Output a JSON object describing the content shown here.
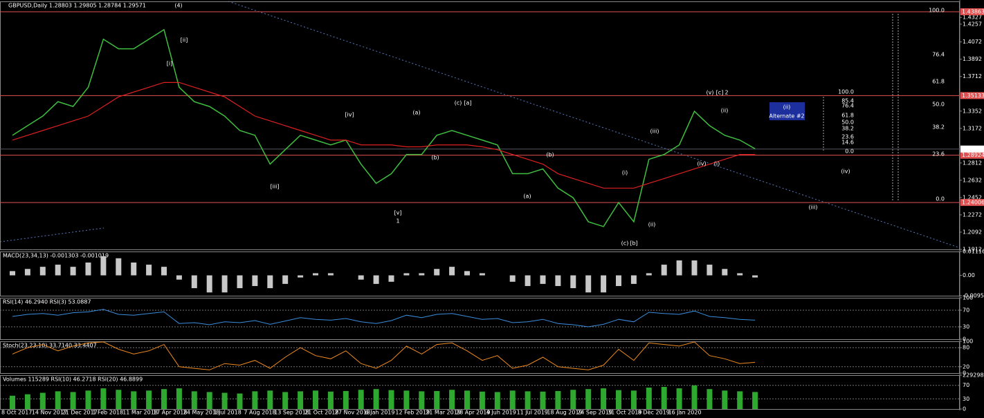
{
  "chart_data": [
    {
      "type": "line",
      "title": "GBPUSD,Daily  1.28803 1.29805 1.28784 1.29571",
      "categories": [
        "8 Oct 2017",
        null,
        "14 Nov 2017",
        null,
        "21 Dec 2017",
        null,
        "1 Feb 2018",
        null,
        "11 Mar 2018",
        null,
        "17 Apr 2018",
        null,
        "24 May 2018",
        null,
        "1 Jul 2018",
        null,
        "7 Aug 2018",
        null,
        "13 Sep 2018",
        null,
        "21 Oct 2018",
        null,
        "27 Nov 2018",
        null,
        "6 Jan 2019",
        null,
        "12 Feb 2019",
        null,
        "21 Mar 2019",
        null,
        "28 Apr 2019",
        null,
        "4 Jun 2019",
        null,
        "11 Jul 2019",
        null,
        "18 Aug 2019",
        null,
        "24 Sep 2019",
        null,
        "31 Oct 2019",
        null,
        "8 Dec 2019",
        null,
        "16 Jan 2020",
        null,
        null,
        null,
        null,
        null
      ],
      "series": [
        {
          "name": "Price",
          "color": "#3fbf3f",
          "values": [
            1.31,
            1.32,
            1.33,
            1.345,
            1.34,
            1.36,
            1.41,
            1.4,
            1.4,
            1.41,
            1.42,
            1.36,
            1.345,
            1.34,
            1.33,
            1.315,
            1.31,
            1.28,
            1.295,
            1.31,
            1.305,
            1.3,
            1.305,
            1.28,
            1.26,
            1.27,
            1.29,
            1.29,
            1.31,
            1.315,
            1.31,
            1.305,
            1.3,
            1.27,
            1.27,
            1.275,
            1.255,
            1.245,
            1.22,
            1.215,
            1.24,
            1.22,
            1.285,
            1.29,
            1.3,
            1.335,
            1.32,
            1.31,
            1.305,
            1.296
          ]
        },
        {
          "name": "MA",
          "color": "#e02020",
          "values": [
            1.305,
            1.31,
            1.315,
            1.32,
            1.325,
            1.33,
            1.34,
            1.35,
            1.355,
            1.36,
            1.365,
            1.365,
            1.36,
            1.355,
            1.35,
            1.34,
            1.33,
            1.325,
            1.32,
            1.315,
            1.31,
            1.305,
            1.305,
            1.3,
            1.3,
            1.3,
            1.298,
            1.298,
            1.3,
            1.3,
            1.3,
            1.298,
            1.295,
            1.29,
            1.285,
            1.28,
            1.27,
            1.265,
            1.26,
            1.255,
            1.255,
            1.255,
            1.26,
            1.265,
            1.27,
            1.275,
            1.28,
            1.285,
            1.29,
            1.29
          ]
        }
      ],
      "ylim": [
        1.1912,
        1.4494
      ],
      "yticks": [
        1.4327,
        1.4257,
        1.4072,
        1.3892,
        1.3712,
        1.3352,
        1.3172,
        1.2812,
        1.2632,
        1.2452,
        1.2272,
        1.2092,
        1.1912
      ],
      "levels": [
        1.43863,
        1.35133,
        1.28924,
        1.24006
      ],
      "level_color": "#e05050",
      "last_price": 1.29571,
      "wave_labels": [
        "(4)",
        "[i]",
        "[ii]",
        "[iii]",
        "[iv]",
        "[v]",
        "1",
        "(a)",
        "(b)",
        "(c)",
        "[a]",
        "(a)",
        "(b)",
        "(i)",
        "(ii)",
        "(iii)",
        "(iv)",
        "(i)",
        "(ii)",
        "(iii)",
        "(iv)",
        "(c)",
        "[b]",
        "(v)",
        "[c]",
        "2"
      ],
      "alternate_box": [
        "(ii)",
        "Alternate #2"
      ],
      "fib_a": [
        "100.0",
        "85.4",
        "76.4",
        "61.8",
        "50.0",
        "38.2",
        "23.6",
        "14.6",
        "0.0"
      ],
      "fib_b": [
        "100.0",
        "76.4",
        "61.8",
        "50.0",
        "38.2",
        "23.6",
        "0.0"
      ]
    },
    {
      "type": "bar",
      "title": "MACD(23,34,13) -0.001303 -0.001019",
      "color": "#c8c8c8",
      "values": [
        0.002,
        0.003,
        0.004,
        0.005,
        0.004,
        0.006,
        0.009,
        0.008,
        0.006,
        0.005,
        0.004,
        -0.002,
        -0.006,
        -0.008,
        -0.008,
        -0.006,
        -0.005,
        -0.006,
        -0.004,
        -0.001,
        0.001,
        0.001,
        0,
        -0.002,
        -0.004,
        -0.003,
        0.001,
        0.001,
        0.003,
        0.004,
        0.002,
        0.001,
        0,
        -0.003,
        -0.005,
        -0.004,
        -0.005,
        -0.006,
        -0.008,
        -0.008,
        -0.005,
        -0.004,
        0.001,
        0.005,
        0.007,
        0.007,
        0.005,
        0.003,
        0.001,
        -0.001
      ],
      "ylim": [
        -0.009532,
        0.011169
      ],
      "yticks": [
        0.011169,
        {
          "value": 0,
          "label": "0.00"
        },
        -0.009532
      ]
    },
    {
      "type": "line",
      "title": "RSI(14) 46.2940  RSI(3) 53.0887",
      "color": "#3a8fe0",
      "values": [
        55,
        60,
        62,
        58,
        64,
        66,
        72,
        60,
        58,
        62,
        66,
        38,
        40,
        35,
        42,
        40,
        45,
        36,
        44,
        52,
        48,
        46,
        50,
        42,
        38,
        45,
        58,
        52,
        60,
        62,
        55,
        48,
        50,
        40,
        42,
        48,
        38,
        35,
        30,
        36,
        48,
        42,
        65,
        62,
        60,
        68,
        55,
        52,
        48,
        46
      ],
      "ylim": [
        0,
        100
      ],
      "yticks": [
        100,
        70,
        30,
        0
      ]
    },
    {
      "type": "line",
      "title": "Stoch(23,23,10) 33.7140 33.4407",
      "color": "#f08c1e",
      "values": [
        60,
        80,
        90,
        70,
        85,
        95,
        98,
        75,
        60,
        70,
        90,
        20,
        15,
        10,
        30,
        25,
        40,
        15,
        50,
        80,
        55,
        45,
        70,
        30,
        15,
        40,
        85,
        60,
        90,
        95,
        70,
        40,
        55,
        15,
        25,
        50,
        20,
        15,
        10,
        25,
        75,
        40,
        95,
        90,
        85,
        98,
        55,
        45,
        30,
        34
      ],
      "ylim": [
        0,
        100
      ],
      "yticks": [
        100,
        80,
        20,
        0
      ]
    },
    {
      "type": "bar",
      "title": "Volumes 115289  RSI(10) 46.2718  RSI(20) 46.8899",
      "color": "#2fa82f",
      "values": [
        90000,
        100000,
        110000,
        120000,
        115000,
        125000,
        140000,
        130000,
        120000,
        125000,
        135000,
        140000,
        120000,
        115000,
        110000,
        105000,
        120000,
        125000,
        115000,
        120000,
        125000,
        118000,
        122000,
        130000,
        135000,
        128000,
        125000,
        120000,
        122000,
        130000,
        125000,
        118000,
        115000,
        125000,
        120000,
        118000,
        122000,
        130000,
        135000,
        140000,
        128000,
        125000,
        145000,
        150000,
        140000,
        160000,
        135000,
        125000,
        120000,
        115289
      ],
      "ylim": [
        0,
        229298
      ],
      "yticks": [
        229298,
        0
      ],
      "y2lim": [
        0,
        100
      ],
      "y2ticks": [
        70,
        30
      ]
    }
  ]
}
